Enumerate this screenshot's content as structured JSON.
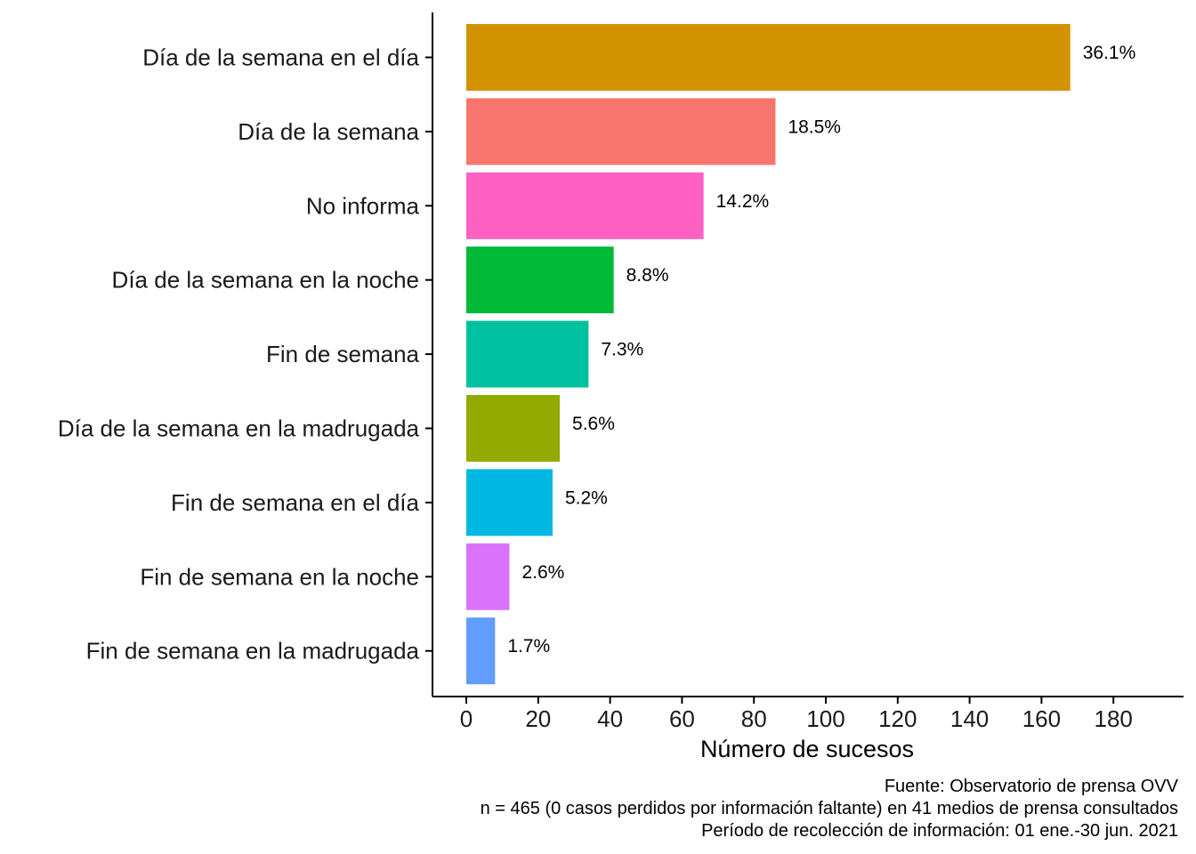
{
  "chart_data": {
    "type": "bar",
    "orientation": "horizontal",
    "categories": [
      "Día de la semana en el día",
      "Día de la semana",
      "No informa",
      "Día de la semana en la noche",
      "Fin de semana",
      "Día de la semana en la madrugada",
      "Fin de semana en el día",
      "Fin de semana en la noche",
      "Fin de semana en la madrugada"
    ],
    "values": [
      168,
      86,
      66,
      41,
      34,
      26,
      24,
      12,
      8
    ],
    "labels": [
      "36.1%",
      "18.5%",
      "14.2%",
      "8.8%",
      "7.3%",
      "5.6%",
      "5.2%",
      "2.6%",
      "1.7%"
    ],
    "colors": [
      "#D39200",
      "#F8766D",
      "#FF61C3",
      "#00BA38",
      "#00C19F",
      "#93AA00",
      "#00B9E3",
      "#DB72FB",
      "#619CFF"
    ],
    "xlabel": "Número de sucesos",
    "ylabel": "",
    "xlim": [
      0,
      180
    ],
    "xticks": [
      0,
      20,
      40,
      60,
      80,
      100,
      120,
      140,
      160,
      180
    ],
    "grid": false,
    "legend": "none"
  },
  "caption": [
    "Fuente: Observatorio de prensa OVV",
    "n = 465 (0 casos perdidos por información faltante) en 41 medios de prensa consultados",
    "Período de recolección de información: 01 ene.-30 jun. 2021"
  ]
}
